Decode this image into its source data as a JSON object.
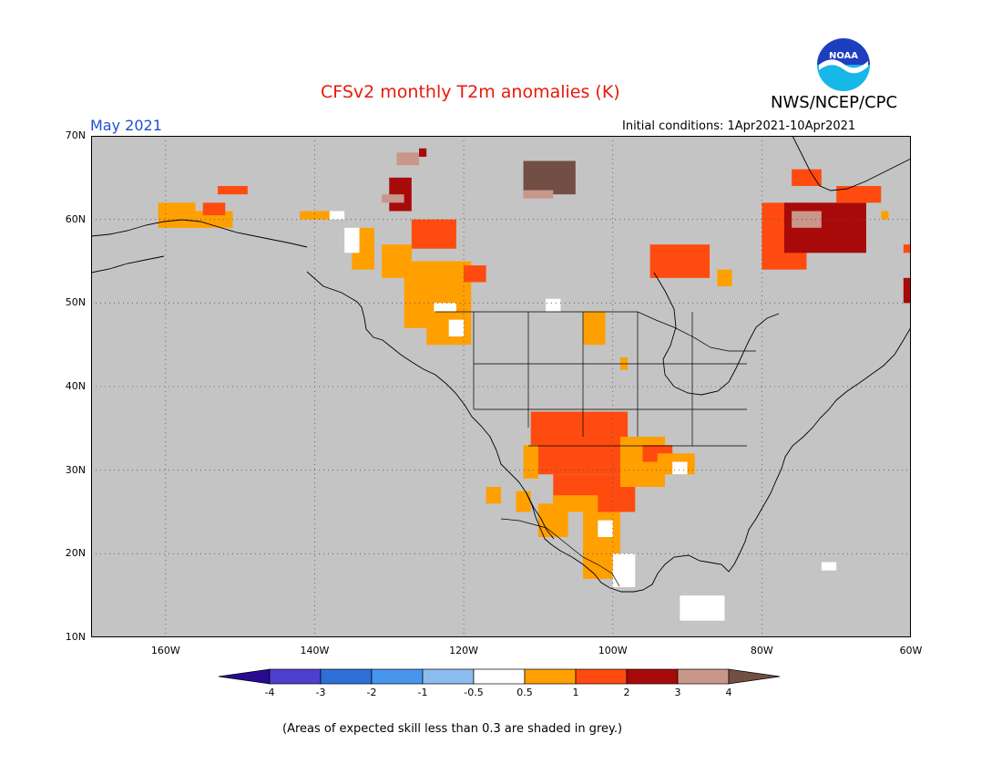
{
  "header": {
    "title": "CFSv2 monthly T2m anomalies (K)",
    "agency": "NWS/NCEP/CPC",
    "month": "May 2021",
    "initial_conditions": "Initial conditions:  1Apr2021-10Apr2021",
    "logo_text": "NOAA"
  },
  "map": {
    "lon_range": [
      -170,
      -60
    ],
    "lat_range": [
      10,
      70
    ],
    "gridlines": "dotted",
    "background": "#c4c4c4",
    "lat_labels": [
      "70N",
      "60N",
      "50N",
      "40N",
      "30N",
      "20N",
      "10N"
    ],
    "lon_labels": [
      "160W",
      "140W",
      "120W",
      "100W",
      "80W",
      "60W"
    ],
    "lon_values": [
      -160,
      -140,
      -120,
      -100,
      -80,
      -60
    ],
    "lat_values": [
      70,
      60,
      50,
      40,
      30,
      20,
      10
    ],
    "anomaly_regions": [
      {
        "lon": [
          -161,
          -156
        ],
        "lat": [
          59,
          62
        ],
        "cat": "warm1"
      },
      {
        "lon": [
          -156,
          -151
        ],
        "lat": [
          59,
          61
        ],
        "cat": "warm1"
      },
      {
        "lon": [
          -153,
          -149
        ],
        "lat": [
          63,
          64
        ],
        "cat": "warm2"
      },
      {
        "lon": [
          -155,
          -152
        ],
        "lat": [
          60.5,
          62
        ],
        "cat": "warm2"
      },
      {
        "lon": [
          -142,
          -138
        ],
        "lat": [
          60,
          61
        ],
        "cat": "warm1"
      },
      {
        "lon": [
          -135,
          -132
        ],
        "lat": [
          54,
          59
        ],
        "cat": "warm1"
      },
      {
        "lon": [
          -131,
          -127
        ],
        "lat": [
          53,
          57
        ],
        "cat": "warm1"
      },
      {
        "lon": [
          -128,
          -119
        ],
        "lat": [
          47,
          55
        ],
        "cat": "warm1"
      },
      {
        "lon": [
          -125,
          -119
        ],
        "lat": [
          45,
          47.5
        ],
        "cat": "warm1"
      },
      {
        "lon": [
          -122,
          -120
        ],
        "lat": [
          46,
          48
        ],
        "cat": "neutral"
      },
      {
        "lon": [
          -124,
          -121
        ],
        "lat": [
          49,
          50
        ],
        "cat": "neutral"
      },
      {
        "lon": [
          -127,
          -121
        ],
        "lat": [
          56.5,
          60
        ],
        "cat": "warm2"
      },
      {
        "lon": [
          -120,
          -117
        ],
        "lat": [
          52.5,
          54.5
        ],
        "cat": "warm2"
      },
      {
        "lon": [
          -130,
          -127
        ],
        "lat": [
          61,
          65
        ],
        "cat": "warm3"
      },
      {
        "lon": [
          -131,
          -128
        ],
        "lat": [
          62,
          63
        ],
        "cat": "warm4"
      },
      {
        "lon": [
          -129,
          -126
        ],
        "lat": [
          66.5,
          68
        ],
        "cat": "warm4"
      },
      {
        "lon": [
          -126,
          -125
        ],
        "lat": [
          67.5,
          68.5
        ],
        "cat": "warm3"
      },
      {
        "lon": [
          -112,
          -105
        ],
        "lat": [
          63,
          67
        ],
        "cat": "warm5"
      },
      {
        "lon": [
          -112,
          -108
        ],
        "lat": [
          62.5,
          63.5
        ],
        "cat": "warm4"
      },
      {
        "lon": [
          -109,
          -107
        ],
        "lat": [
          49,
          50.5
        ],
        "cat": "neutral"
      },
      {
        "lon": [
          -104,
          -101
        ],
        "lat": [
          45,
          49
        ],
        "cat": "warm1"
      },
      {
        "lon": [
          -99,
          -98
        ],
        "lat": [
          42,
          43.5
        ],
        "cat": "warm1"
      },
      {
        "lon": [
          -111,
          -98
        ],
        "lat": [
          29.5,
          37
        ],
        "cat": "warm2"
      },
      {
        "lon": [
          -112,
          -110
        ],
        "lat": [
          29,
          33
        ],
        "cat": "warm1"
      },
      {
        "lon": [
          -108,
          -97
        ],
        "lat": [
          25,
          29.5
        ],
        "cat": "warm2"
      },
      {
        "lon": [
          -108,
          -102
        ],
        "lat": [
          25,
          27
        ],
        "cat": "warm1"
      },
      {
        "lon": [
          -99,
          -93
        ],
        "lat": [
          28,
          34
        ],
        "cat": "warm1"
      },
      {
        "lon": [
          -96,
          -92
        ],
        "lat": [
          31,
          33
        ],
        "cat": "warm2"
      },
      {
        "lon": [
          -94,
          -89
        ],
        "lat": [
          29.5,
          32
        ],
        "cat": "warm1"
      },
      {
        "lon": [
          -92,
          -90
        ],
        "lat": [
          29.5,
          31
        ],
        "cat": "neutral"
      },
      {
        "lon": [
          -110,
          -106
        ],
        "lat": [
          22,
          26
        ],
        "cat": "warm1"
      },
      {
        "lon": [
          -104,
          -99
        ],
        "lat": [
          17,
          25
        ],
        "cat": "warm1"
      },
      {
        "lon": [
          -102,
          -100
        ],
        "lat": [
          22,
          24
        ],
        "cat": "neutral"
      },
      {
        "lon": [
          -100,
          -97
        ],
        "lat": [
          16,
          20
        ],
        "cat": "neutral"
      },
      {
        "lon": [
          -117,
          -115
        ],
        "lat": [
          26,
          28
        ],
        "cat": "warm1"
      },
      {
        "lon": [
          -113,
          -111
        ],
        "lat": [
          25,
          27.5
        ],
        "cat": "warm1"
      },
      {
        "lon": [
          -91,
          -85
        ],
        "lat": [
          12,
          15
        ],
        "cat": "neutral"
      },
      {
        "lon": [
          -72,
          -70
        ],
        "lat": [
          18,
          19
        ],
        "cat": "neutral"
      },
      {
        "lon": [
          -95,
          -87
        ],
        "lat": [
          53,
          57
        ],
        "cat": "warm2"
      },
      {
        "lon": [
          -86,
          -84
        ],
        "lat": [
          52,
          54
        ],
        "cat": "warm1"
      },
      {
        "lon": [
          -80,
          -74
        ],
        "lat": [
          54,
          62
        ],
        "cat": "warm2"
      },
      {
        "lon": [
          -77,
          -66
        ],
        "lat": [
          56,
          62
        ],
        "cat": "warm3"
      },
      {
        "lon": [
          -76,
          -72
        ],
        "lat": [
          59,
          61
        ],
        "cat": "warm4"
      },
      {
        "lon": [
          -70,
          -64
        ],
        "lat": [
          62,
          64
        ],
        "cat": "warm2"
      },
      {
        "lon": [
          -76,
          -72
        ],
        "lat": [
          64,
          66
        ],
        "cat": "warm2"
      },
      {
        "lon": [
          -61,
          -60
        ],
        "lat": [
          50,
          53
        ],
        "cat": "warm3"
      },
      {
        "lon": [
          -61,
          -60
        ],
        "lat": [
          56,
          57
        ],
        "cat": "warm2"
      },
      {
        "lon": [
          -64,
          -63
        ],
        "lat": [
          60,
          61
        ],
        "cat": "warm1"
      },
      {
        "lon": [
          -138,
          -136
        ],
        "lat": [
          60,
          61
        ],
        "cat": "neutral"
      },
      {
        "lon": [
          -136,
          -134
        ],
        "lat": [
          56,
          59
        ],
        "cat": "neutral"
      }
    ]
  },
  "colorbar": {
    "labels": [
      "-4",
      "-3",
      "-2",
      "-1",
      "-0.5",
      "0.5",
      "1",
      "2",
      "3",
      "4"
    ],
    "colors": [
      "#2a0a92",
      "#4f3fcf",
      "#2e6fd6",
      "#4796ee",
      "#8cbcf0",
      "#ffffff",
      "#ffa000",
      "#ff4b10",
      "#a80a0a",
      "#c9968a",
      "#734e44"
    ]
  },
  "categories": {
    "neutral": "#ffffff",
    "warm1": "#ffa000",
    "warm2": "#ff4b10",
    "warm3": "#a80a0a",
    "warm4": "#c9968a",
    "warm5": "#734e44"
  },
  "footnote": "(Areas of expected skill less than 0.3 are shaded in grey.)"
}
